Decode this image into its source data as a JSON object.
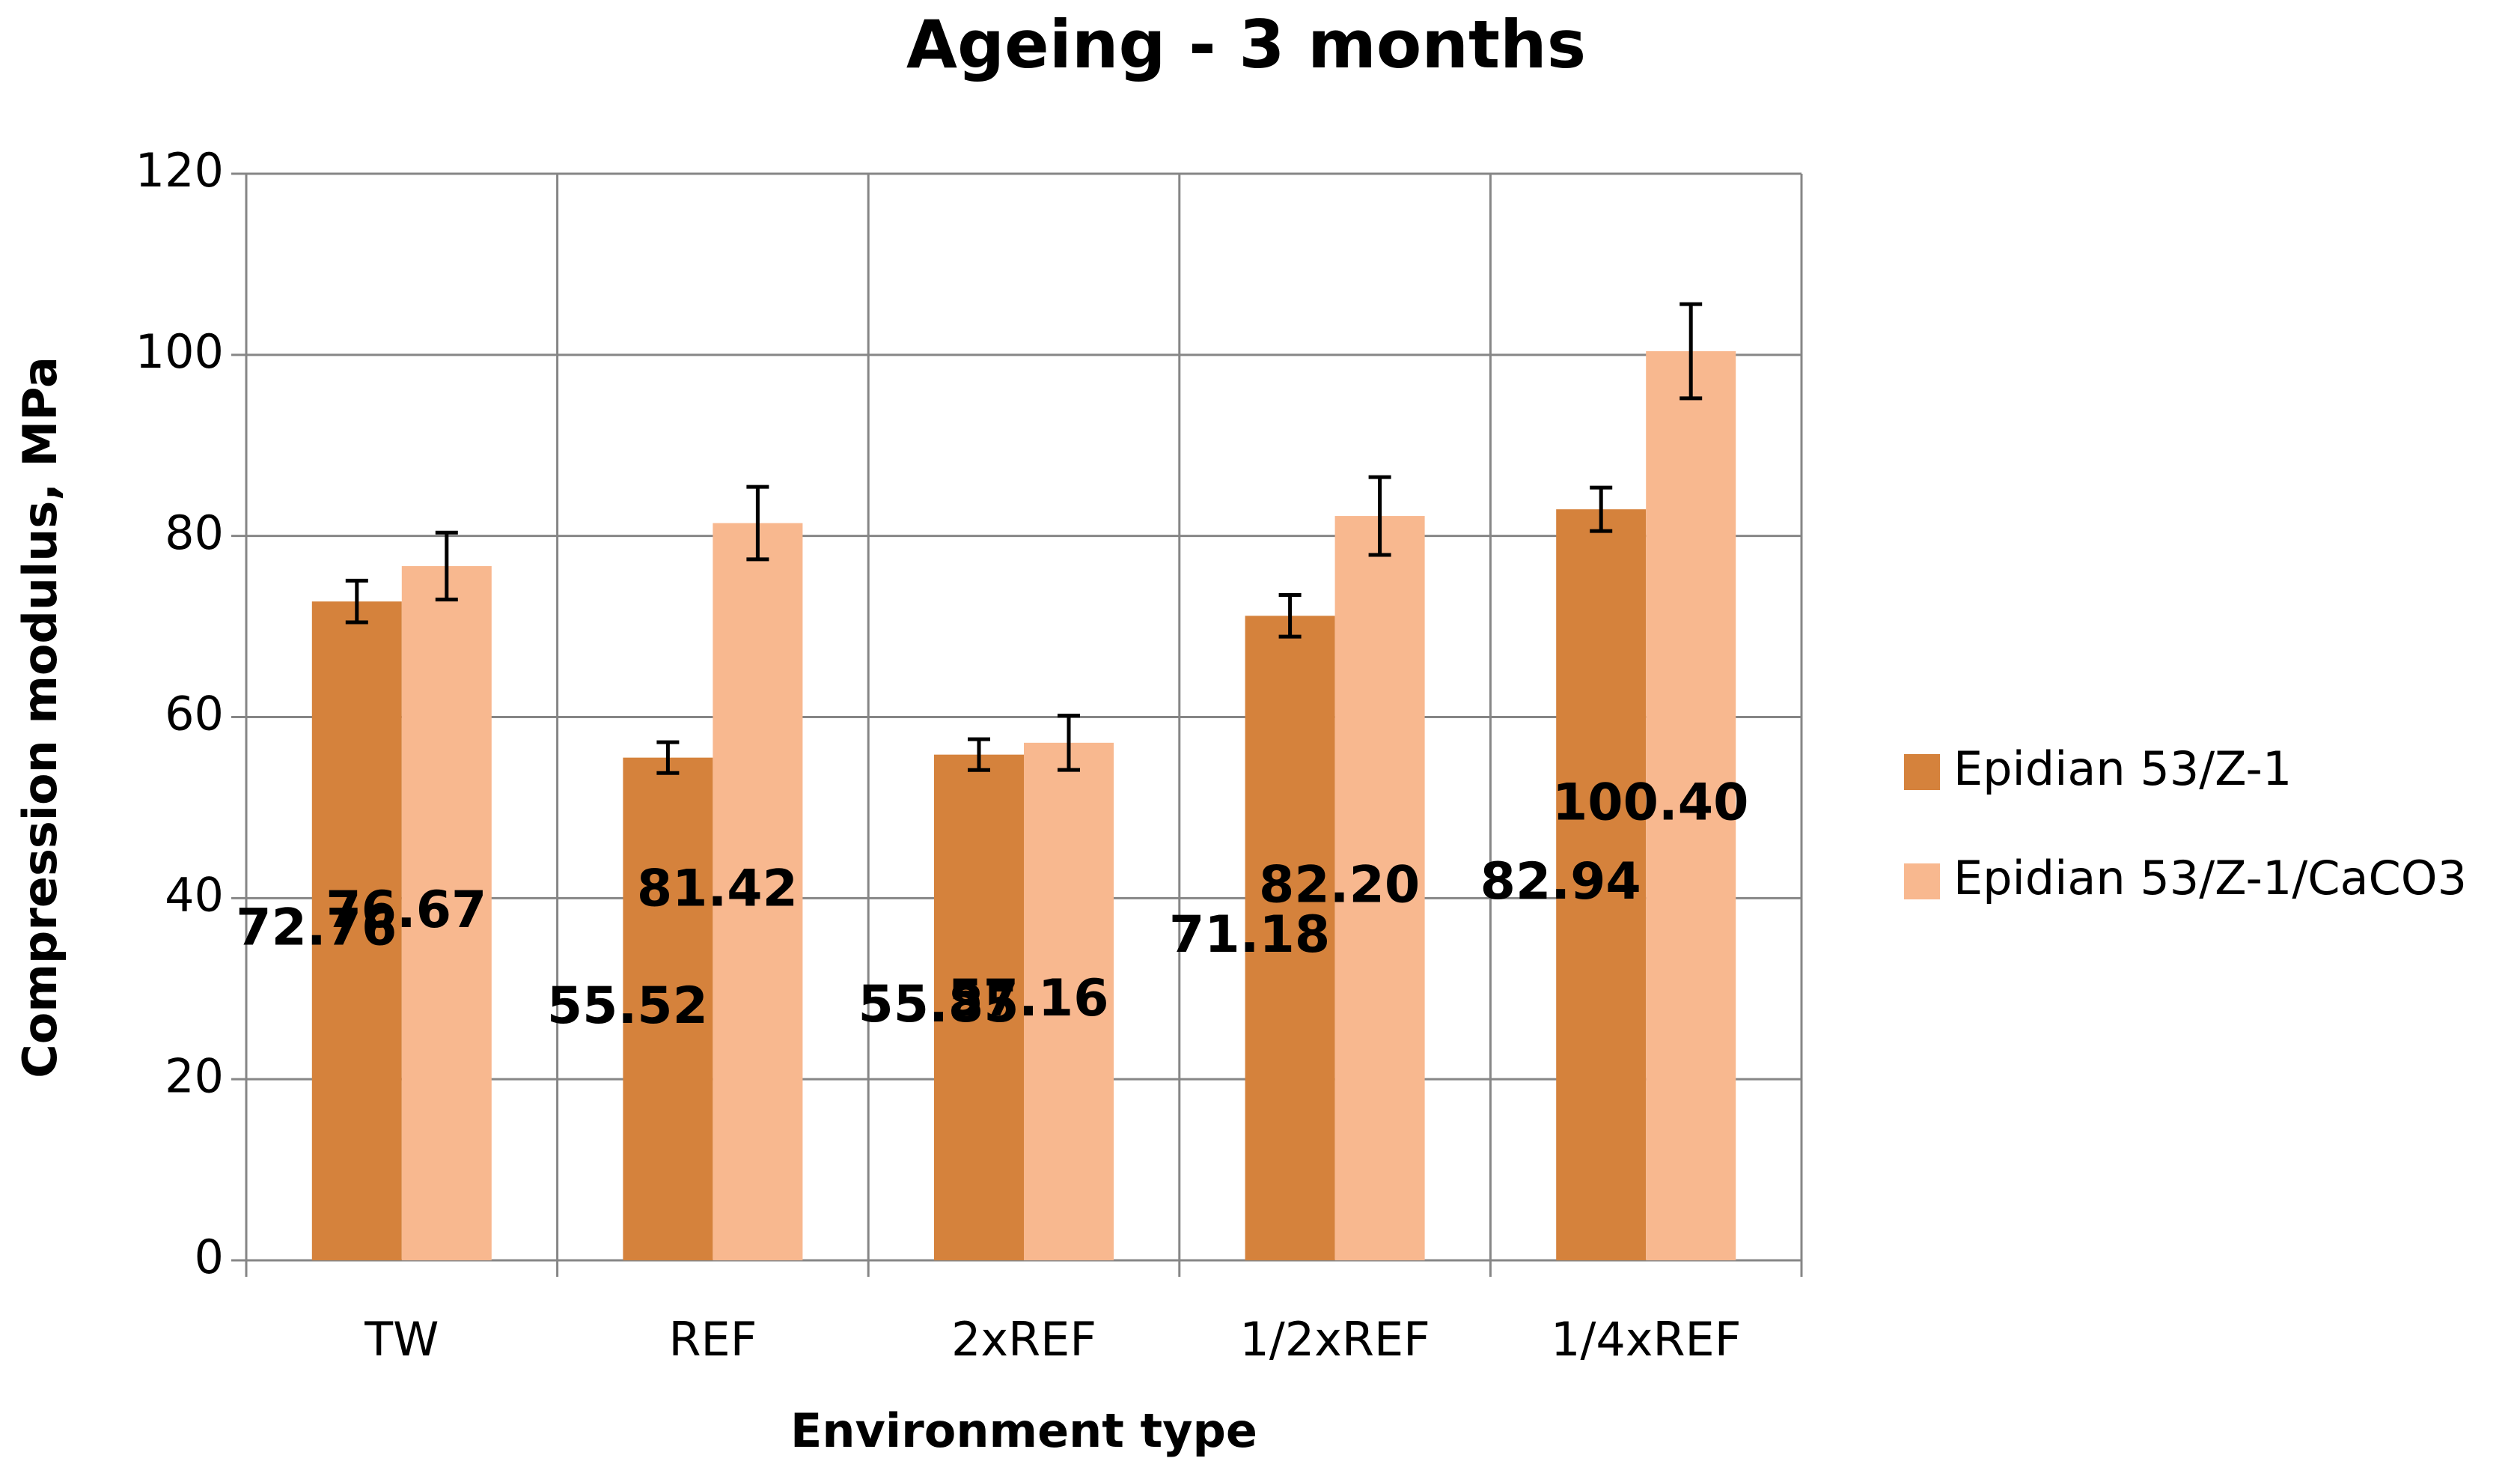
{
  "chart_data": {
    "type": "bar",
    "title": "Ageing - 3 months",
    "x_label": "Environment type",
    "y_label": "Compression modulus, MPa",
    "categories": [
      "TW",
      "REF",
      "2xREF",
      "1/2xREF",
      "1/4xREF"
    ],
    "series": [
      {
        "name": "Epidian 53/Z-1",
        "color": "#d5823c",
        "values": [
          72.76,
          55.52,
          55.85,
          71.18,
          82.94
        ],
        "value_labels": [
          "72.76",
          "55.52",
          "55.85",
          "71.18",
          "82.94"
        ],
        "errors": [
          2.3,
          1.7,
          1.7,
          2.3,
          2.4
        ]
      },
      {
        "name": "Epidian 53/Z-1/CaCO3",
        "color": "#f8b88f",
        "values": [
          76.67,
          81.42,
          57.16,
          82.2,
          100.4
        ],
        "value_labels": [
          "76.67",
          "81.42",
          "57.16",
          "82.20",
          "100.40"
        ],
        "errors": [
          3.7,
          4.0,
          3.0,
          4.3,
          5.2
        ]
      }
    ],
    "ylim": [
      0,
      120
    ],
    "yticks": [
      0,
      20,
      40,
      60,
      80,
      100,
      120
    ],
    "grid": true,
    "legend": "right"
  }
}
